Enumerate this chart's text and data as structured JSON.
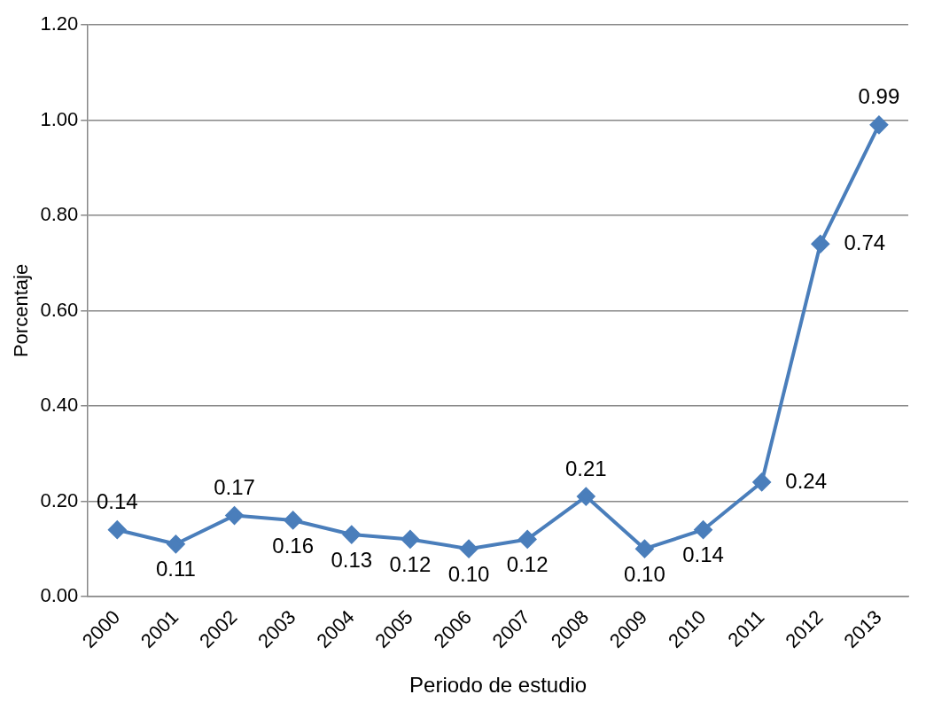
{
  "chart_data": {
    "type": "line",
    "xlabel": "Periodo de estudio",
    "ylabel": "Porcentaje",
    "categories": [
      "2000",
      "2001",
      "2002",
      "2003",
      "2004",
      "2005",
      "2006",
      "2007",
      "2008",
      "2009",
      "2010",
      "2011",
      "2012",
      "2013"
    ],
    "series": [
      {
        "color": "#4a7ebb",
        "values": [
          0.14,
          0.11,
          0.17,
          0.16,
          0.13,
          0.12,
          0.1,
          0.12,
          0.21,
          0.1,
          0.14,
          0.24,
          0.74,
          0.99
        ],
        "value_labels": [
          "0.14",
          "0.11",
          "0.17",
          "0.16",
          "0.13",
          "0.12",
          "0.10",
          "0.12",
          "0.21",
          "0.10",
          "0.14",
          "0.24",
          "0.74",
          "0.99"
        ]
      }
    ],
    "ylim": [
      0,
      1.2
    ],
    "yticks": [
      {
        "value": 0,
        "label": "0.00"
      },
      {
        "value": 0.2,
        "label": "0.20"
      },
      {
        "value": 0.4,
        "label": "0.40"
      },
      {
        "value": 0.6,
        "label": "0.60"
      },
      {
        "value": 0.8,
        "label": "0.80"
      },
      {
        "value": 1,
        "label": "1.00"
      },
      {
        "value": 1.2,
        "label": "1.20"
      }
    ],
    "grid": "y",
    "legend": false,
    "marker": "diamond",
    "line_style": "solid"
  }
}
